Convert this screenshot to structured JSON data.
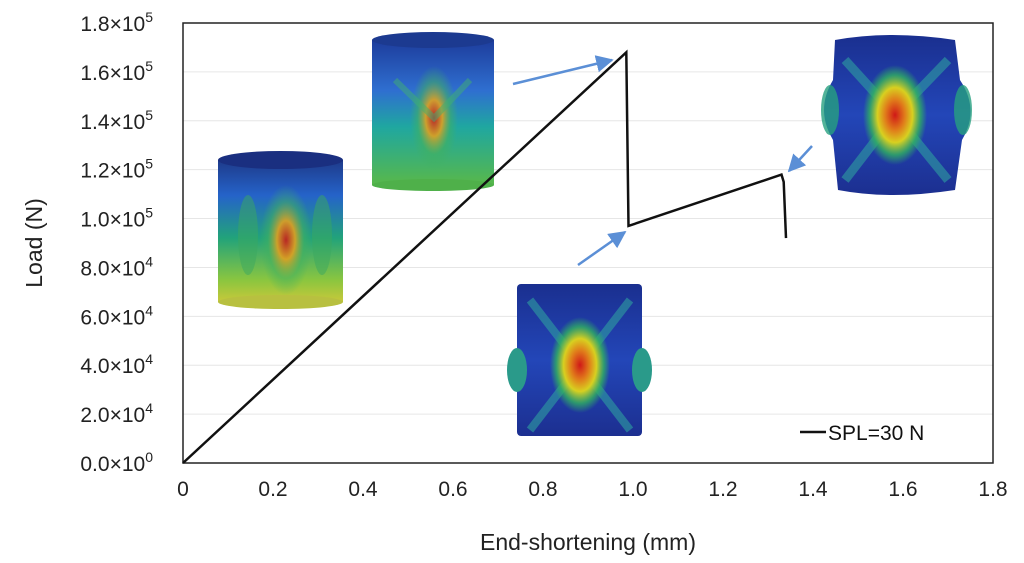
{
  "chart_data": {
    "type": "line",
    "xlabel": "End-shortening (mm)",
    "ylabel": "Load (N)",
    "xlim": [
      0,
      1.8
    ],
    "ylim": [
      0,
      180000
    ],
    "x_ticks": [
      {
        "value": 0,
        "label": "0"
      },
      {
        "value": 0.2,
        "label": "0.2"
      },
      {
        "value": 0.4,
        "label": "0.4"
      },
      {
        "value": 0.6,
        "label": "0.6"
      },
      {
        "value": 0.8,
        "label": "0.8"
      },
      {
        "value": 1.0,
        "label": "1.0"
      },
      {
        "value": 1.2,
        "label": "1.2"
      },
      {
        "value": 1.4,
        "label": "1.4"
      },
      {
        "value": 1.6,
        "label": "1.6"
      },
      {
        "value": 1.8,
        "label": "1.8"
      }
    ],
    "y_ticks": [
      {
        "value": 0,
        "mant": "0.0×10",
        "exp": "0"
      },
      {
        "value": 20000,
        "mant": "2.0×10",
        "exp": "4"
      },
      {
        "value": 40000,
        "mant": "4.0×10",
        "exp": "4"
      },
      {
        "value": 60000,
        "mant": "6.0×10",
        "exp": "4"
      },
      {
        "value": 80000,
        "mant": "8.0×10",
        "exp": "4"
      },
      {
        "value": 100000,
        "mant": "1.0×10",
        "exp": "5"
      },
      {
        "value": 120000,
        "mant": "1.2×10",
        "exp": "5"
      },
      {
        "value": 140000,
        "mant": "1.4×10",
        "exp": "5"
      },
      {
        "value": 160000,
        "mant": "1.6×10",
        "exp": "5"
      },
      {
        "value": 180000,
        "mant": "1.8×10",
        "exp": "5"
      }
    ],
    "grid": "horizontal",
    "legend_position": "bottom-right",
    "series": [
      {
        "name": "SPL=30 N",
        "color": "#111111",
        "x": [
          0,
          0.985,
          0.99,
          1.33,
          1.335,
          1.34
        ],
        "y": [
          0,
          168000,
          97000,
          118000,
          115000,
          92000
        ]
      }
    ],
    "annotations": [
      {
        "type": "fem-image",
        "variant": "pre-buckling-1",
        "description_icon": "cylinder-contour-plot"
      },
      {
        "type": "fem-image",
        "variant": "pre-buckling-2",
        "description_icon": "cylinder-contour-plot"
      },
      {
        "type": "fem-image",
        "variant": "post-buckling-1",
        "description_icon": "buckled-cylinder-plot"
      },
      {
        "type": "fem-image",
        "variant": "post-buckling-2",
        "description_icon": "buckled-cylinder-plot"
      }
    ],
    "arrow_color": "#5b8fd6"
  }
}
